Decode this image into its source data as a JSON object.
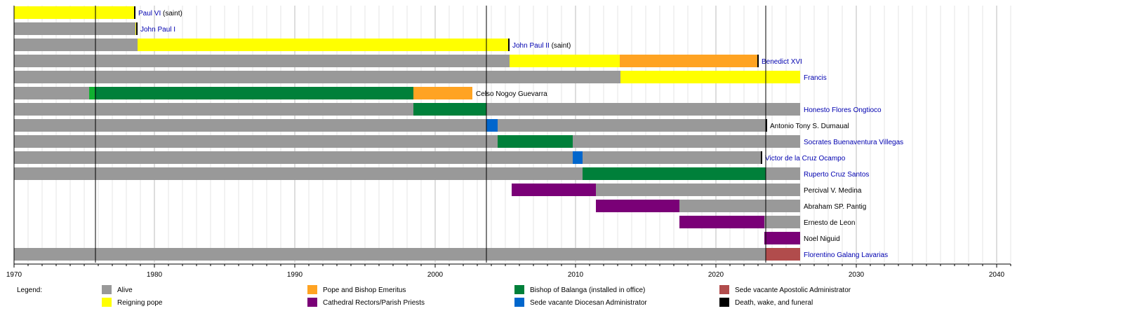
{
  "chart_data": {
    "type": "timeline",
    "xlim": [
      1970,
      2041
    ],
    "x_ticks": [
      1970,
      1980,
      1990,
      2000,
      2010,
      2020,
      2030,
      2040
    ],
    "grid": {
      "major_every_years": 10,
      "minor_every_years": 1
    },
    "marker_lines": [
      1975.8,
      2003.65,
      2023.55
    ],
    "colors": {
      "alive": "#999999",
      "pope": "#ffff00",
      "emeritus": "#ffa322",
      "bishop": "#00803a",
      "bishop_light": "#10b030",
      "rector": "#7a0077",
      "diocesan_admin": "#0066cc",
      "apostolic_admin": "#b14c4c",
      "death": "#000000",
      "link": "#0000b0",
      "text": "#000000"
    },
    "rows": [
      {
        "name": "Paul VI",
        "suffix": " (saint)",
        "link": true,
        "segments": [
          {
            "from": 1970,
            "to": 1978.55,
            "kind": "pope"
          }
        ],
        "death": 1978.6
      },
      {
        "name": "John Paul I",
        "suffix": "",
        "link": true,
        "segments": [
          {
            "from": 1970,
            "to": 1978.65,
            "kind": "alive"
          },
          {
            "from": 1978.65,
            "to": 1978.75,
            "kind": "pope"
          }
        ],
        "death": 1978.75
      },
      {
        "name": "John Paul II",
        "suffix": " (saint)",
        "link": true,
        "segments": [
          {
            "from": 1970,
            "to": 1978.8,
            "kind": "alive"
          },
          {
            "from": 1978.8,
            "to": 2005.25,
            "kind": "pope"
          }
        ],
        "death": 2005.25
      },
      {
        "name": "Benedict XVI",
        "suffix": "",
        "link": true,
        "segments": [
          {
            "from": 1970,
            "to": 2005.3,
            "kind": "alive"
          },
          {
            "from": 2005.3,
            "to": 2013.15,
            "kind": "pope"
          },
          {
            "from": 2013.15,
            "to": 2022.99,
            "kind": "emeritus"
          }
        ],
        "death": 2023.0
      },
      {
        "name": "Francis",
        "suffix": "",
        "link": true,
        "segments": [
          {
            "from": 1970,
            "to": 2013.2,
            "kind": "alive"
          },
          {
            "from": 2013.2,
            "to": 2026,
            "kind": "pope"
          }
        ]
      },
      {
        "name": "Celso Nogoy Guevarra",
        "suffix": "",
        "link": false,
        "segments": [
          {
            "from": 1970,
            "to": 1975.35,
            "kind": "alive"
          },
          {
            "from": 1975.35,
            "to": 1975.75,
            "kind": "bishop_light"
          },
          {
            "from": 1975.75,
            "to": 1998.45,
            "kind": "bishop"
          },
          {
            "from": 1998.45,
            "to": 2002.65,
            "kind": "emeritus"
          }
        ]
      },
      {
        "name": "Honesto Flores Ongtioco",
        "suffix": "",
        "link": true,
        "segments": [
          {
            "from": 1970,
            "to": 1998.45,
            "kind": "alive"
          },
          {
            "from": 1998.45,
            "to": 2003.65,
            "kind": "bishop"
          },
          {
            "from": 2003.65,
            "to": 2026,
            "kind": "alive"
          }
        ]
      },
      {
        "name": "Antonio Tony S. Dumaual",
        "suffix": "",
        "link": false,
        "segments": [
          {
            "from": 1970,
            "to": 2003.65,
            "kind": "alive"
          },
          {
            "from": 2003.65,
            "to": 2004.45,
            "kind": "diocesan_admin"
          },
          {
            "from": 2004.45,
            "to": 2023.55,
            "kind": "alive"
          }
        ],
        "death": 2023.6
      },
      {
        "name": "Socrates Buenaventura Villegas",
        "suffix": "",
        "link": true,
        "segments": [
          {
            "from": 1970,
            "to": 2004.45,
            "kind": "alive"
          },
          {
            "from": 2004.45,
            "to": 2009.8,
            "kind": "bishop"
          },
          {
            "from": 2009.8,
            "to": 2026,
            "kind": "alive"
          }
        ]
      },
      {
        "name": "Victor de la Cruz Ocampo",
        "suffix": "",
        "link": true,
        "segments": [
          {
            "from": 1970,
            "to": 2009.8,
            "kind": "alive"
          },
          {
            "from": 2009.8,
            "to": 2010.5,
            "kind": "diocesan_admin"
          },
          {
            "from": 2010.5,
            "to": 2023.2,
            "kind": "alive"
          }
        ],
        "death": 2023.25
      },
      {
        "name": "Ruperto Cruz Santos",
        "suffix": "",
        "link": true,
        "segments": [
          {
            "from": 1970,
            "to": 2010.5,
            "kind": "alive"
          },
          {
            "from": 2010.5,
            "to": 2023.55,
            "kind": "bishop"
          },
          {
            "from": 2023.55,
            "to": 2026,
            "kind": "alive"
          }
        ]
      },
      {
        "name": "Percival V. Medina",
        "suffix": "",
        "link": false,
        "segments": [
          {
            "from": 2005.45,
            "to": 2011.45,
            "kind": "rector"
          },
          {
            "from": 2011.45,
            "to": 2026,
            "kind": "alive"
          }
        ]
      },
      {
        "name": "Abraham SP. Pantig",
        "suffix": "",
        "link": false,
        "segments": [
          {
            "from": 2011.45,
            "to": 2017.4,
            "kind": "rector"
          },
          {
            "from": 2017.4,
            "to": 2026,
            "kind": "alive"
          }
        ]
      },
      {
        "name": "Ernesto de Leon",
        "suffix": "",
        "link": false,
        "segments": [
          {
            "from": 2017.4,
            "to": 2023.45,
            "kind": "rector"
          },
          {
            "from": 2023.45,
            "to": 2026,
            "kind": "alive"
          }
        ]
      },
      {
        "name": "Noel Niguid",
        "suffix": "",
        "link": false,
        "segments": [
          {
            "from": 2023.45,
            "to": 2026,
            "kind": "rector"
          }
        ]
      },
      {
        "name": "Florentino Galang Lavarias",
        "suffix": "",
        "link": true,
        "segments": [
          {
            "from": 1970,
            "to": 2023.55,
            "kind": "alive"
          },
          {
            "from": 2023.55,
            "to": 2026,
            "kind": "apostolic_admin"
          }
        ]
      }
    ],
    "legend": {
      "title": "Legend:",
      "items": [
        {
          "label": "Alive",
          "kind": "alive"
        },
        {
          "label": "Reigning pope",
          "kind": "pope"
        },
        {
          "label": "Pope and Bishop Emeritus",
          "kind": "emeritus"
        },
        {
          "label": "Cathedral Rectors/Parish Priests",
          "kind": "rector"
        },
        {
          "label": "Bishop of Balanga (installed in office)",
          "kind": "bishop"
        },
        {
          "label": "Sede vacante Diocesan Administrator",
          "kind": "diocesan_admin"
        },
        {
          "label": "Sede vacante Apostolic Administrator",
          "kind": "apostolic_admin"
        },
        {
          "label": "Death, wake, and funeral",
          "kind": "death"
        }
      ]
    }
  }
}
